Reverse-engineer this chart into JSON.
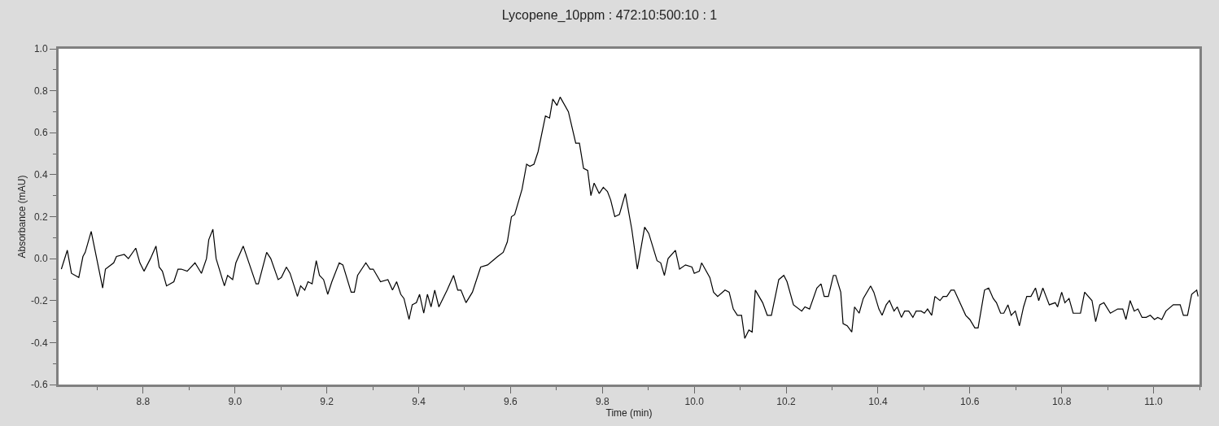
{
  "chart_data": {
    "type": "line",
    "title": "Lycopene_10ppm : 472:10:500:10 : 1",
    "xlabel": "Time (min)",
    "ylabel": "Absorbance (mAU)",
    "xlim": [
      8.616,
      11.1
    ],
    "ylim": [
      -0.6,
      1.0
    ],
    "xticks": [
      8.8,
      {
        "value": 9.0,
        "label": "9.0"
      },
      9.2,
      9.4,
      9.6,
      9.8,
      {
        "value": 10.0,
        "label": "10.0"
      },
      10.2,
      10.4,
      10.6,
      10.8,
      {
        "value": 11.0,
        "label": "11.0"
      }
    ],
    "yticks": [
      -0.6,
      -0.4,
      -0.2,
      {
        "value": 0,
        "label": "0.0"
      },
      0.2,
      0.4,
      0.6,
      0.8,
      {
        "value": 1.0,
        "label": "1.0"
      }
    ],
    "marker": "none",
    "line_style": "solid",
    "series": [
      {
        "color": "#000000",
        "x": [
          8.622,
          8.635,
          8.644,
          8.66,
          8.669,
          8.674,
          8.687,
          8.712,
          8.718,
          8.736,
          8.742,
          8.759,
          8.768,
          8.784,
          8.793,
          8.802,
          8.816,
          8.828,
          8.835,
          8.842,
          8.851,
          8.867,
          8.876,
          8.883,
          8.896,
          8.913,
          8.927,
          8.938,
          8.943,
          8.952,
          8.959,
          8.977,
          8.984,
          8.995,
          9.002,
          9.018,
          9.046,
          9.051,
          9.069,
          9.078,
          9.094,
          9.101,
          9.112,
          9.12,
          9.136,
          9.143,
          9.152,
          9.159,
          9.168,
          9.177,
          9.184,
          9.193,
          9.202,
          9.211,
          9.227,
          9.235,
          9.253,
          9.26,
          9.267,
          9.285,
          9.294,
          9.301,
          9.317,
          9.333,
          9.343,
          9.352,
          9.361,
          9.368,
          9.379,
          9.386,
          9.395,
          9.402,
          9.411,
          9.419,
          9.427,
          9.435,
          9.444,
          9.462,
          9.476,
          9.485,
          9.492,
          9.503,
          9.517,
          9.535,
          9.55,
          9.572,
          9.584,
          9.593,
          9.602,
          9.609,
          9.625,
          9.635,
          9.642,
          9.651,
          9.66,
          9.676,
          9.685,
          9.692,
          9.701,
          9.708,
          9.726,
          9.742,
          9.75,
          9.759,
          9.768,
          9.775,
          9.782,
          9.793,
          9.802,
          9.811,
          9.818,
          9.827,
          9.837,
          9.85,
          9.864,
          9.876,
          9.892,
          9.901,
          9.919,
          9.927,
          9.935,
          9.943,
          9.959,
          9.968,
          9.981,
          9.995,
          10.0,
          10.011,
          10.016,
          10.034,
          10.042,
          10.051,
          10.067,
          10.076,
          10.085,
          10.094,
          10.103,
          10.11,
          10.119,
          10.126,
          10.133,
          10.149,
          10.159,
          10.168,
          10.184,
          10.195,
          10.202,
          10.216,
          10.234,
          10.241,
          10.251,
          10.267,
          10.276,
          10.283,
          10.292,
          10.303,
          10.308,
          10.319,
          10.324,
          10.333,
          10.343,
          10.349,
          10.359,
          10.368,
          10.384,
          10.391,
          10.402,
          10.409,
          10.418,
          10.425,
          10.435,
          10.442,
          10.451,
          10.458,
          10.467,
          10.476,
          10.483,
          10.494,
          10.501,
          10.508,
          10.517,
          10.524,
          10.535,
          10.542,
          10.55,
          10.559,
          10.566,
          10.591,
          10.6,
          10.611,
          10.618,
          10.632,
          10.641,
          10.651,
          10.658,
          10.667,
          10.674,
          10.683,
          10.69,
          10.699,
          10.708,
          10.717,
          10.724,
          10.733,
          10.743,
          10.75,
          10.759,
          10.766,
          10.773,
          10.786,
          10.791,
          10.8,
          10.807,
          10.816,
          10.825,
          10.841,
          10.85,
          10.866,
          10.874,
          10.883,
          10.892,
          10.906,
          10.922,
          10.933,
          10.94,
          10.949,
          10.958,
          10.966,
          10.975,
          10.984,
          10.993,
          11.002,
          11.009,
          11.018,
          11.027,
          11.043,
          11.058,
          11.065,
          11.074,
          11.083,
          11.094,
          11.097
        ],
        "values": [
          -0.05,
          0.04,
          -0.07,
          -0.09,
          0.01,
          0.03,
          0.13,
          -0.14,
          -0.05,
          -0.02,
          0.01,
          0.02,
          0.0,
          0.05,
          -0.02,
          -0.06,
          0.0,
          0.06,
          -0.04,
          -0.06,
          -0.13,
          -0.11,
          -0.05,
          -0.05,
          -0.06,
          -0.02,
          -0.07,
          0.0,
          0.09,
          0.14,
          0.0,
          -0.13,
          -0.08,
          -0.1,
          -0.02,
          0.06,
          -0.12,
          -0.12,
          0.03,
          0.0,
          -0.1,
          -0.09,
          -0.04,
          -0.07,
          -0.18,
          -0.13,
          -0.15,
          -0.11,
          -0.12,
          -0.01,
          -0.08,
          -0.1,
          -0.17,
          -0.11,
          -0.02,
          -0.03,
          -0.16,
          -0.16,
          -0.08,
          -0.02,
          -0.05,
          -0.05,
          -0.11,
          -0.1,
          -0.15,
          -0.11,
          -0.17,
          -0.19,
          -0.29,
          -0.22,
          -0.21,
          -0.17,
          -0.26,
          -0.17,
          -0.23,
          -0.15,
          -0.23,
          -0.15,
          -0.08,
          -0.15,
          -0.15,
          -0.21,
          -0.16,
          -0.04,
          -0.03,
          0.01,
          0.03,
          0.08,
          0.2,
          0.21,
          0.33,
          0.45,
          0.44,
          0.45,
          0.51,
          0.68,
          0.67,
          0.76,
          0.73,
          0.77,
          0.7,
          0.55,
          0.55,
          0.43,
          0.42,
          0.3,
          0.36,
          0.31,
          0.34,
          0.32,
          0.28,
          0.2,
          0.21,
          0.31,
          0.14,
          -0.05,
          0.15,
          0.12,
          -0.01,
          -0.02,
          -0.08,
          0.0,
          0.04,
          -0.05,
          -0.03,
          -0.04,
          -0.07,
          -0.06,
          -0.02,
          -0.09,
          -0.16,
          -0.18,
          -0.15,
          -0.16,
          -0.24,
          -0.27,
          -0.27,
          -0.38,
          -0.34,
          -0.35,
          -0.15,
          -0.21,
          -0.27,
          -0.27,
          -0.1,
          -0.08,
          -0.11,
          -0.22,
          -0.25,
          -0.23,
          -0.24,
          -0.14,
          -0.12,
          -0.18,
          -0.18,
          -0.08,
          -0.08,
          -0.16,
          -0.31,
          -0.32,
          -0.35,
          -0.23,
          -0.26,
          -0.19,
          -0.13,
          -0.16,
          -0.24,
          -0.27,
          -0.22,
          -0.2,
          -0.25,
          -0.23,
          -0.28,
          -0.25,
          -0.25,
          -0.28,
          -0.25,
          -0.25,
          -0.26,
          -0.24,
          -0.27,
          -0.18,
          -0.2,
          -0.18,
          -0.18,
          -0.15,
          -0.15,
          -0.27,
          -0.29,
          -0.33,
          -0.33,
          -0.15,
          -0.14,
          -0.19,
          -0.21,
          -0.26,
          -0.26,
          -0.22,
          -0.27,
          -0.25,
          -0.32,
          -0.23,
          -0.18,
          -0.18,
          -0.14,
          -0.2,
          -0.14,
          -0.18,
          -0.22,
          -0.21,
          -0.23,
          -0.16,
          -0.21,
          -0.19,
          -0.26,
          -0.26,
          -0.16,
          -0.2,
          -0.3,
          -0.22,
          -0.21,
          -0.26,
          -0.24,
          -0.24,
          -0.29,
          -0.2,
          -0.25,
          -0.24,
          -0.28,
          -0.28,
          -0.27,
          -0.29,
          -0.28,
          -0.29,
          -0.25,
          -0.22,
          -0.22,
          -0.27,
          -0.27,
          -0.17,
          -0.15,
          -0.18
        ]
      }
    ]
  }
}
